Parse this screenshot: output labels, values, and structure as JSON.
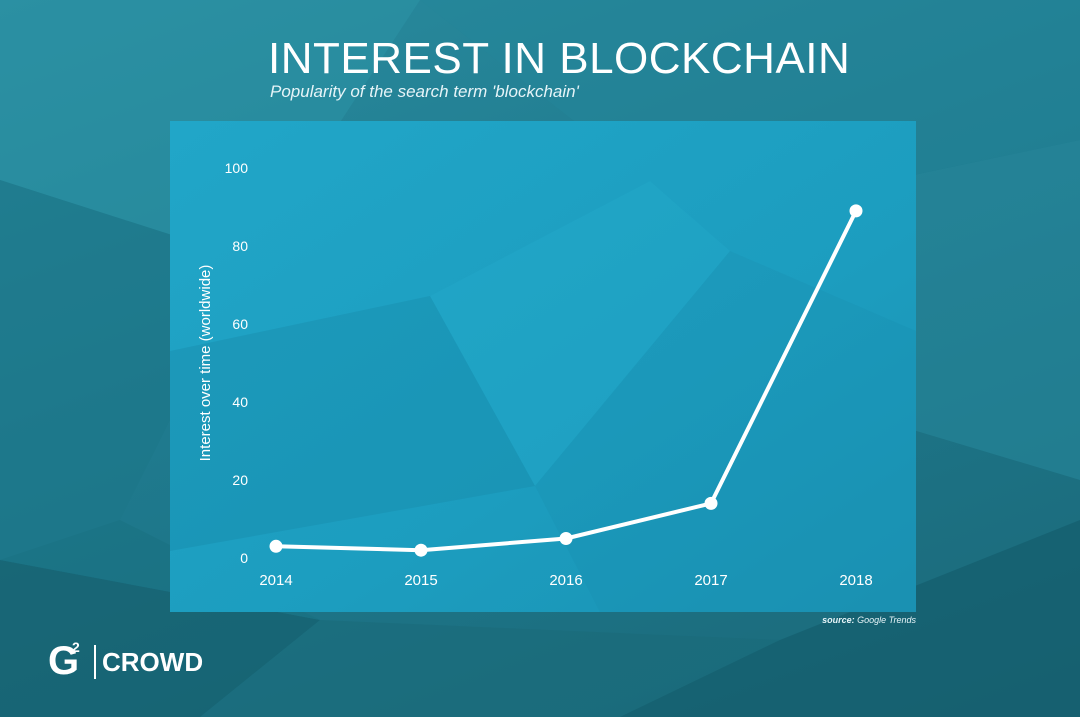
{
  "header": {
    "title": "INTEREST IN BLOCKCHAIN",
    "subtitle": "Popularity of the search term 'blockchain'"
  },
  "footer": {
    "source_key": "source:",
    "source_value": "Google Trends",
    "logo_letter": "G",
    "logo_sup": "2",
    "logo_text": "CROWD"
  },
  "chart_data": {
    "type": "line",
    "title": "INTEREST IN BLOCKCHAIN",
    "subtitle": "Popularity of the search term 'blockchain'",
    "xlabel": "",
    "ylabel": "Interest over time (worldwide)",
    "categories": [
      "2014",
      "2015",
      "2016",
      "2017",
      "2018"
    ],
    "series": [
      {
        "values": [
          3,
          2,
          5,
          14,
          89
        ]
      }
    ],
    "ylim": [
      0,
      100
    ],
    "yticks": [
      0,
      20,
      40,
      60,
      80,
      100
    ],
    "grid": false,
    "legend": "none",
    "colors": {
      "line": "#ffffff",
      "panel": "#1fa0c3",
      "text": "#ffffff"
    }
  }
}
